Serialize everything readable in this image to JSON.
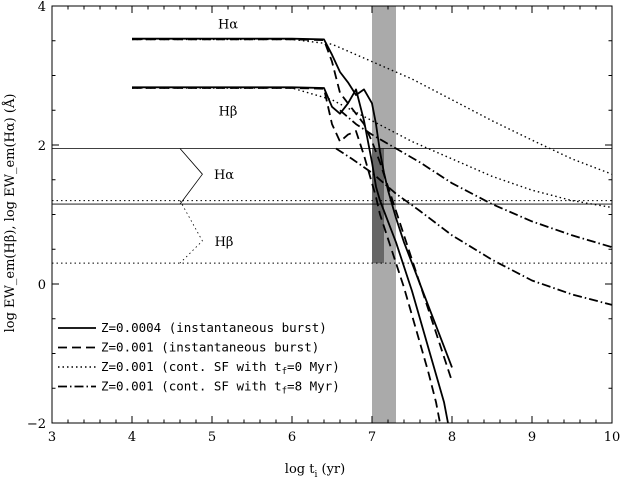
{
  "chart_data": {
    "type": "line",
    "xlabel": "log t",
    "xlabel_sub": "i",
    "xlabel_unit": " (yr)",
    "ylabel": "log EW_em(Hβ), log EW_em(Hα) (Å)",
    "xlim": [
      3,
      10
    ],
    "ylim": [
      -2,
      4
    ],
    "x_ticks": [
      "3",
      "4",
      "5",
      "6",
      "7",
      "8",
      "9",
      "10"
    ],
    "y_ticks": [
      "−2",
      "0",
      "2",
      "4"
    ],
    "shaded_band": {
      "x": [
        7.0,
        7.3
      ],
      "color": "#aaaaaa"
    },
    "dark_box": {
      "x": [
        7.0,
        7.15
      ],
      "y": [
        0.3,
        1.95
      ],
      "color": "#666666"
    },
    "hlines": [
      {
        "y": 1.95,
        "style": "solid"
      },
      {
        "y": 1.15,
        "style": "solid"
      },
      {
        "y": 1.2,
        "style": "dotted"
      },
      {
        "y": 0.3,
        "style": "dotted"
      }
    ],
    "annotations": [
      {
        "text": "Hα",
        "x": 5.2,
        "y": 3.75
      },
      {
        "text": "Hβ",
        "x": 5.2,
        "y": 2.5
      },
      {
        "text": "Hα",
        "x": 5.15,
        "y": 1.58
      },
      {
        "text": "Hβ",
        "x": 5.15,
        "y": 0.62
      }
    ],
    "brackets": [
      {
        "x_left": 4.6,
        "x_right": 4.88,
        "y_top": 1.95,
        "y_mid": 1.58,
        "y_bottom": 1.15,
        "style": "solid"
      },
      {
        "x_left": 4.6,
        "x_right": 4.88,
        "y_top": 1.2,
        "y_mid": 0.62,
        "y_bottom": 0.3,
        "style": "dotted"
      }
    ],
    "series": [
      {
        "name": "Z=0.0004 (instantaneous burst)",
        "style": "solid",
        "lines": [
          {
            "x": [
              4.0,
              6.0,
              6.4,
              6.5,
              6.6,
              6.7,
              6.8,
              6.9,
              7.0,
              7.05,
              7.1,
              7.15,
              7.2,
              7.25,
              7.3,
              7.4,
              7.5,
              7.6,
              7.7,
              7.8,
              7.9,
              8.0
            ],
            "y": [
              3.53,
              3.53,
              3.52,
              3.3,
              3.05,
              2.9,
              2.72,
              2.8,
              2.6,
              2.3,
              1.9,
              1.6,
              1.35,
              1.15,
              0.95,
              0.6,
              0.3,
              0.0,
              -0.3,
              -0.6,
              -0.9,
              -1.2
            ]
          },
          {
            "x": [
              4.0,
              6.0,
              6.4,
              6.5,
              6.6,
              6.7,
              6.8,
              6.9,
              7.0,
              7.05,
              7.1,
              7.15,
              7.2,
              7.3,
              7.4,
              7.5,
              7.6,
              7.7,
              7.8,
              7.9,
              7.95
            ],
            "y": [
              2.83,
              2.83,
              2.82,
              2.55,
              2.45,
              2.6,
              2.8,
              2.35,
              1.75,
              1.4,
              1.2,
              1.05,
              0.9,
              0.6,
              0.25,
              -0.1,
              -0.5,
              -0.9,
              -1.3,
              -1.7,
              -2.0
            ]
          }
        ]
      },
      {
        "name": "Z=0.001 (instantaneous burst)",
        "style": "dashed",
        "lines": [
          {
            "x": [
              4.0,
              6.0,
              6.4,
              6.5,
              6.6,
              6.7,
              6.8,
              6.9,
              7.0,
              7.1,
              7.2,
              7.3,
              7.4,
              7.5,
              7.6,
              7.7,
              7.8,
              7.9,
              8.0
            ],
            "y": [
              3.52,
              3.52,
              3.51,
              3.2,
              2.75,
              2.6,
              2.45,
              2.3,
              2.05,
              1.75,
              1.4,
              1.05,
              0.7,
              0.35,
              0.0,
              -0.35,
              -0.7,
              -1.05,
              -1.4
            ]
          },
          {
            "x": [
              4.0,
              6.0,
              6.4,
              6.5,
              6.6,
              6.7,
              6.8,
              6.9,
              7.0,
              7.05,
              7.1,
              7.2,
              7.3,
              7.4,
              7.5,
              7.6,
              7.7,
              7.8,
              7.85
            ],
            "y": [
              2.82,
              2.82,
              2.81,
              2.3,
              2.05,
              2.15,
              2.2,
              1.85,
              1.45,
              1.25,
              1.0,
              0.65,
              0.3,
              -0.05,
              -0.45,
              -0.85,
              -1.25,
              -1.7,
              -2.0
            ]
          }
        ]
      },
      {
        "name": "Z=0.001 (cont. SF with t_f=0 Myr)",
        "style": "dotted",
        "lines": [
          {
            "x": [
              4.0,
              6.0,
              6.5,
              7.0,
              7.5,
              8.0,
              8.5,
              9.0,
              9.5,
              10.0
            ],
            "y": [
              3.52,
              3.52,
              3.45,
              3.2,
              2.95,
              2.65,
              2.35,
              2.07,
              1.8,
              1.58
            ]
          },
          {
            "x": [
              4.0,
              6.0,
              6.5,
              7.0,
              7.5,
              8.0,
              8.5,
              9.0,
              9.5,
              10.0
            ],
            "y": [
              2.82,
              2.82,
              2.65,
              2.35,
              2.05,
              1.8,
              1.55,
              1.35,
              1.2,
              1.1
            ]
          }
        ]
      },
      {
        "name": "Z=0.001 (cont. SF with t_f=8 Myr)",
        "style": "dashdot",
        "lines": [
          {
            "x": [
              6.6,
              6.8,
              7.0,
              7.3,
              7.6,
              8.0,
              8.5,
              9.0,
              9.5,
              10.0
            ],
            "y": [
              2.5,
              2.3,
              2.15,
              1.95,
              1.75,
              1.45,
              1.15,
              0.9,
              0.7,
              0.53
            ]
          },
          {
            "x": [
              6.55,
              6.75,
              7.0,
              7.3,
              7.6,
              8.0,
              8.5,
              9.0,
              9.5,
              10.0
            ],
            "y": [
              1.95,
              1.8,
              1.6,
              1.3,
              1.05,
              0.7,
              0.35,
              0.05,
              -0.15,
              -0.3
            ]
          }
        ]
      }
    ],
    "legend": {
      "placement": "bottom-left",
      "entries": [
        {
          "style": "solid",
          "text": "Z=0.0004 (instantaneous burst)"
        },
        {
          "style": "dashed",
          "text": "Z=0.001 (instantaneous burst)"
        },
        {
          "style": "dotted",
          "text": "Z=0.001 (cont. SF with t",
          "sub": "f",
          "tail": "=0 Myr)"
        },
        {
          "style": "dashdot",
          "text": "Z=0.001 (cont. SF with t",
          "sub": "f",
          "tail": "=8 Myr)"
        }
      ]
    }
  }
}
